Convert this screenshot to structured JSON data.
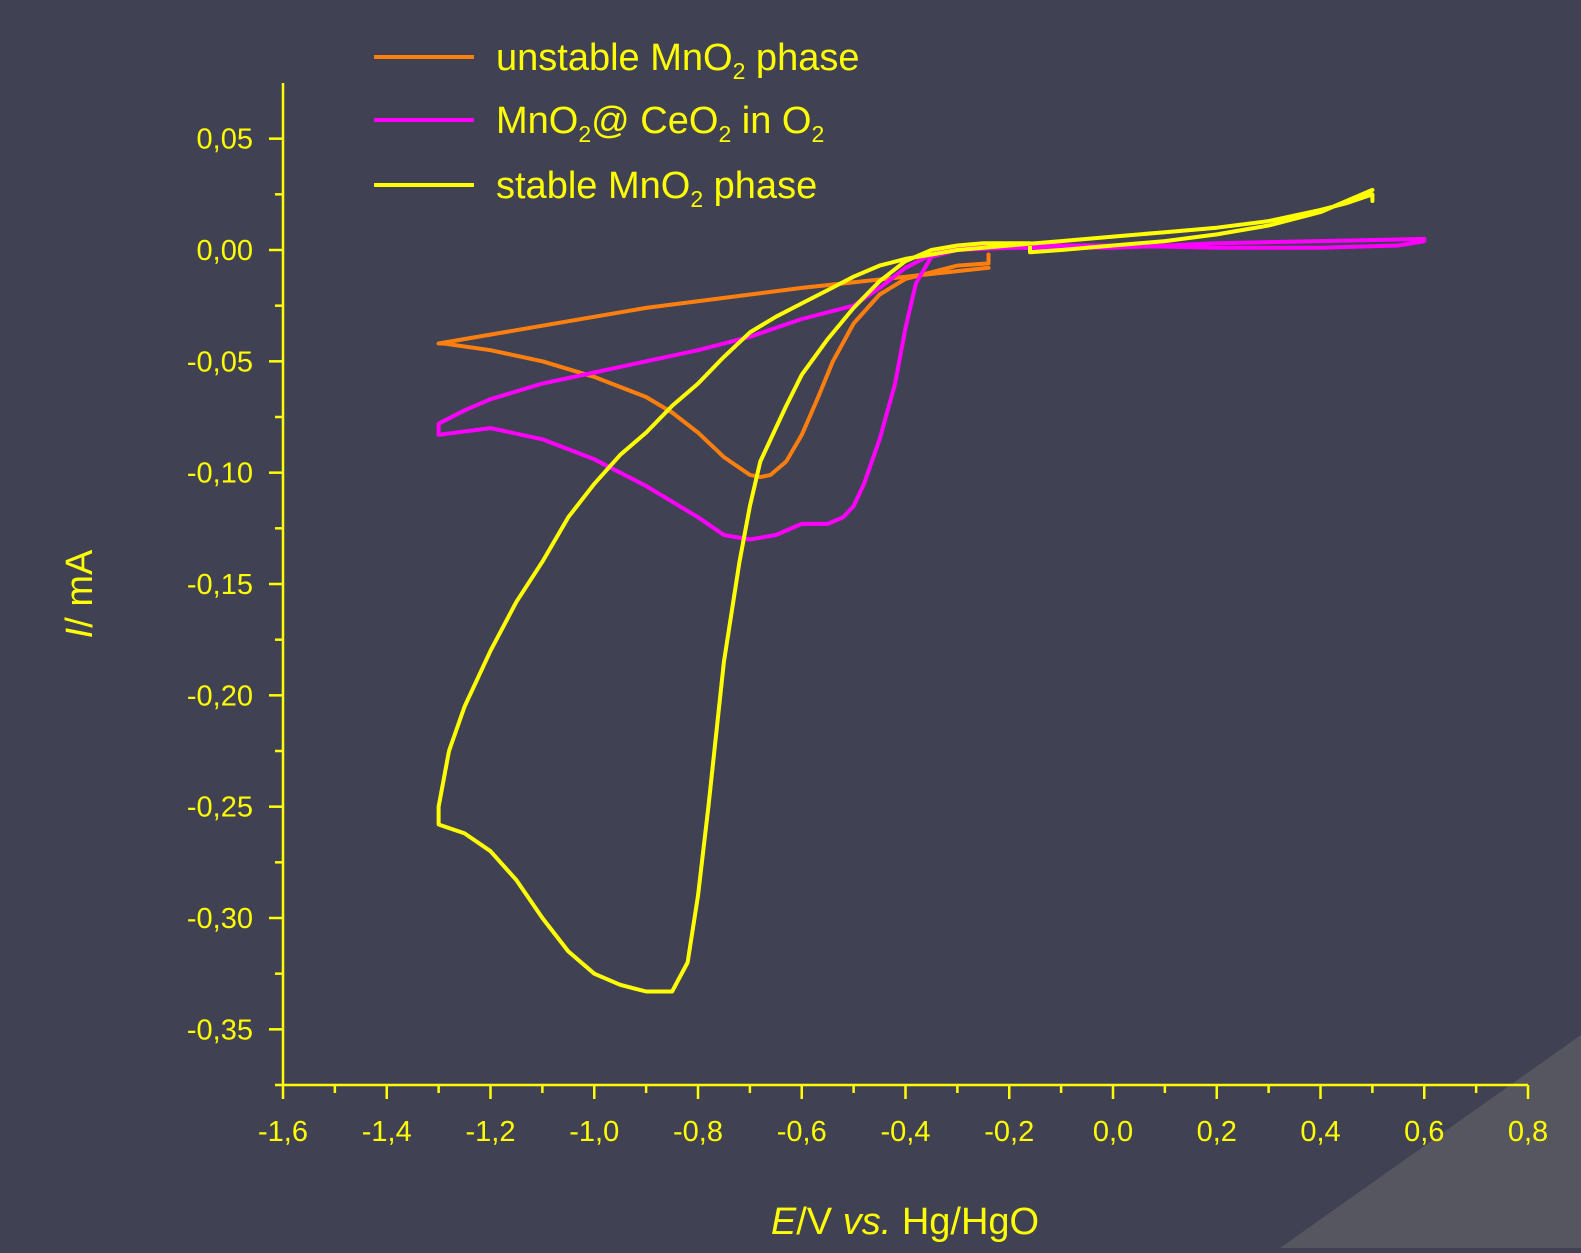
{
  "background_color": "#404254",
  "corner_shade_color": "#55565f",
  "axis_color": "#ffff00",
  "text_color": "#ffff00",
  "legend": [
    {
      "series": 0,
      "parts": [
        {
          "t": "unstable MnO"
        },
        {
          "t": "2",
          "sub": true
        },
        {
          "t": " phase"
        }
      ]
    },
    {
      "series": 1,
      "parts": [
        {
          "t": "MnO"
        },
        {
          "t": "2",
          "sub": true
        },
        {
          "t": "@ CeO"
        },
        {
          "t": "2",
          "sub": true
        },
        {
          "t": " in O"
        },
        {
          "t": "2",
          "sub": true
        }
      ]
    },
    {
      "series": 2,
      "parts": [
        {
          "t": "stable MnO"
        },
        {
          "t": "2",
          "sub": true
        },
        {
          "t": " phase"
        }
      ]
    }
  ],
  "chart_data": {
    "type": "line",
    "title": "",
    "xlabel_parts": [
      {
        "t": "E",
        "i": true
      },
      {
        "t": "/V "
      },
      {
        "t": "vs.",
        "i": true
      },
      {
        "t": " Hg/HgO"
      }
    ],
    "ylabel_parts": [
      {
        "t": "I",
        "i": true
      },
      {
        "t": "/ mA"
      }
    ],
    "xlim": [
      -1.6,
      0.8
    ],
    "ylim": [
      -0.375,
      0.075
    ],
    "xticks": [
      -1.6,
      -1.4,
      -1.2,
      -1.0,
      -0.8,
      -0.6,
      -0.4,
      -0.2,
      0.0,
      0.2,
      0.4,
      0.6,
      0.8
    ],
    "xtick_labels": [
      "-1,6",
      "-1,4",
      "-1,2",
      "-1,0",
      "-0,8",
      "-0,6",
      "-0,4",
      "-0,2",
      "0,0",
      "0,2",
      "0,4",
      "0,6",
      "0,8"
    ],
    "yticks": [
      0.05,
      0.0,
      -0.05,
      -0.1,
      -0.15,
      -0.2,
      -0.25,
      -0.3,
      -0.35
    ],
    "ytick_labels": [
      "0,05",
      "0,00",
      "-0,05",
      "-0,10",
      "-0,15",
      "-0,20",
      "-0,25",
      "-0,30",
      "-0,35"
    ],
    "legend_position": "top-left",
    "grid": false,
    "series": [
      {
        "name": "unstable MnO2 phase",
        "color": "#ff7f0e",
        "x": [
          -0.24,
          -0.4,
          -0.6,
          -0.9,
          -1.1,
          -1.3,
          -1.29,
          -1.2,
          -1.1,
          -1.0,
          -0.9,
          -0.85,
          -0.8,
          -0.75,
          -0.7,
          -0.68,
          -0.66,
          -0.63,
          -0.6,
          -0.57,
          -0.54,
          -0.5,
          -0.45,
          -0.4,
          -0.35,
          -0.3,
          -0.24,
          -0.24
        ],
        "y": [
          -0.008,
          -0.012,
          -0.017,
          -0.026,
          -0.034,
          -0.042,
          -0.042,
          -0.045,
          -0.05,
          -0.057,
          -0.066,
          -0.073,
          -0.082,
          -0.093,
          -0.101,
          -0.102,
          -0.101,
          -0.095,
          -0.083,
          -0.067,
          -0.05,
          -0.033,
          -0.02,
          -0.013,
          -0.01,
          -0.007,
          -0.006,
          -0.002
        ]
      },
      {
        "name": "MnO2@ CeO2 in O2",
        "color": "#ff00ff",
        "x": [
          0.6,
          0.4,
          0.2,
          0.0,
          -0.2,
          -0.3,
          -0.35,
          -0.38,
          -0.4,
          -0.42,
          -0.45,
          -0.48,
          -0.5,
          -0.52,
          -0.55,
          -0.6,
          -0.65,
          -0.7,
          -0.75,
          -0.8,
          -0.9,
          -1.0,
          -1.1,
          -1.2,
          -1.3,
          -1.3,
          -1.25,
          -1.2,
          -1.1,
          -1.0,
          -0.9,
          -0.8,
          -0.7,
          -0.65,
          -0.6,
          -0.55,
          -0.5,
          -0.45,
          -0.4,
          -0.35,
          -0.3,
          -0.2,
          0.0,
          0.2,
          0.4,
          0.55,
          0.6
        ],
        "y": [
          0.005,
          0.004,
          0.003,
          0.001,
          0.001,
          0.0,
          -0.003,
          -0.015,
          -0.035,
          -0.06,
          -0.085,
          -0.105,
          -0.115,
          -0.12,
          -0.123,
          -0.123,
          -0.128,
          -0.13,
          -0.128,
          -0.12,
          -0.106,
          -0.094,
          -0.085,
          -0.08,
          -0.083,
          -0.078,
          -0.072,
          -0.067,
          -0.06,
          -0.055,
          -0.05,
          -0.045,
          -0.039,
          -0.035,
          -0.031,
          -0.028,
          -0.025,
          -0.017,
          -0.008,
          -0.002,
          0.001,
          0.002,
          0.002,
          0.001,
          0.001,
          0.002,
          0.004
        ]
      },
      {
        "name": "stable MnO2 phase",
        "color": "#ffff00",
        "x": [
          0.5,
          0.4,
          0.3,
          0.2,
          0.1,
          0.0,
          -0.1,
          -0.16,
          -0.16,
          -0.2,
          -0.25,
          -0.3,
          -0.35,
          -0.4,
          -0.45,
          -0.5,
          -0.55,
          -0.6,
          -0.63,
          -0.65,
          -0.68,
          -0.7,
          -0.72,
          -0.75,
          -0.78,
          -0.8,
          -0.82,
          -0.85,
          -0.9,
          -0.95,
          -1.0,
          -1.05,
          -1.1,
          -1.15,
          -1.2,
          -1.25,
          -1.3,
          -1.3,
          -1.28,
          -1.25,
          -1.2,
          -1.15,
          -1.1,
          -1.05,
          -1.0,
          -0.95,
          -0.9,
          -0.85,
          -0.8,
          -0.75,
          -0.7,
          -0.65,
          -0.6,
          -0.55,
          -0.5,
          -0.45,
          -0.4,
          -0.35,
          -0.3,
          -0.2,
          -0.1,
          0.0,
          0.1,
          0.2,
          0.3,
          0.4,
          0.45,
          0.5,
          0.5
        ],
        "y": [
          0.027,
          0.017,
          0.011,
          0.007,
          0.004,
          0.002,
          0.0,
          -0.001,
          0.003,
          0.003,
          0.003,
          0.002,
          0.0,
          -0.005,
          -0.014,
          -0.026,
          -0.04,
          -0.056,
          -0.07,
          -0.08,
          -0.095,
          -0.115,
          -0.14,
          -0.185,
          -0.25,
          -0.29,
          -0.32,
          -0.333,
          -0.333,
          -0.33,
          -0.325,
          -0.315,
          -0.3,
          -0.283,
          -0.27,
          -0.262,
          -0.258,
          -0.25,
          -0.225,
          -0.205,
          -0.18,
          -0.158,
          -0.14,
          -0.12,
          -0.105,
          -0.092,
          -0.082,
          -0.07,
          -0.06,
          -0.048,
          -0.037,
          -0.03,
          -0.024,
          -0.018,
          -0.012,
          -0.007,
          -0.004,
          -0.002,
          0.0,
          0.002,
          0.004,
          0.006,
          0.008,
          0.01,
          0.013,
          0.018,
          0.021,
          0.025,
          0.022
        ]
      }
    ]
  }
}
